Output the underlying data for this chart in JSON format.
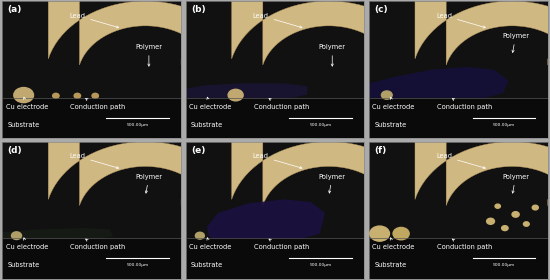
{
  "panels": [
    {
      "label": "(a)"
    },
    {
      "label": "(b)"
    },
    {
      "label": "(c)"
    },
    {
      "label": "(d)"
    },
    {
      "label": "(e)"
    },
    {
      "label": "(f)"
    }
  ],
  "bg_color": "#111111",
  "lead_color": "#d0b882",
  "lead_edge_color": "#b89860",
  "substrate_bg": "#0d0d0d",
  "border_color": "#aaaaaa",
  "text_color": "white",
  "annotations": {
    "lead": "Lead",
    "polymer": "Polymer",
    "cu_electrode": "Cu electrode",
    "conduction_path": "Conduction path",
    "substrate": "Substrate",
    "scale": "500.00μm"
  },
  "figsize": [
    5.5,
    2.8
  ],
  "dpi": 100
}
